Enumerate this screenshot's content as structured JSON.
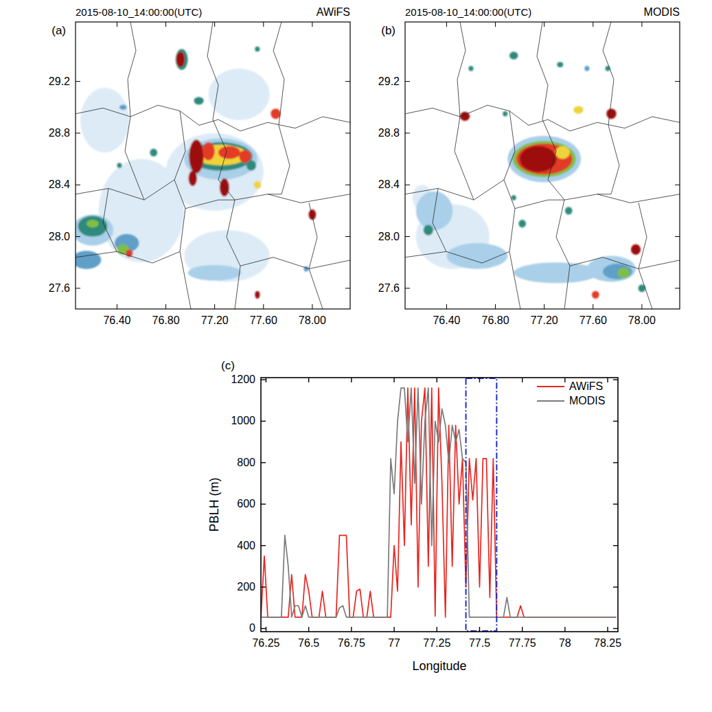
{
  "chart_data": [
    {
      "type": "map",
      "panel": "(a)",
      "title": "2015-08-10_14:00:00(UTC)",
      "subtitle": "AWiFS",
      "xlim": [
        76.06,
        78.31
      ],
      "ylim": [
        27.44,
        29.66
      ],
      "xticks": [
        {
          "value": 76.4,
          "label": "76.40"
        },
        {
          "value": 76.8,
          "label": "76.80"
        },
        {
          "value": 77.2,
          "label": "77.20"
        },
        {
          "value": 77.6,
          "label": "77.60"
        },
        {
          "value": 78.0,
          "label": "78.00"
        }
      ],
      "yticks": [
        {
          "value": 27.6,
          "label": "27.6"
        },
        {
          "value": 28.0,
          "label": "28.0"
        },
        {
          "value": 28.4,
          "label": "28.4"
        },
        {
          "value": 28.8,
          "label": "28.8"
        },
        {
          "value": 29.2,
          "label": "29.2"
        }
      ],
      "colors": [
        "#dcebf6",
        "#a9cfe9",
        "#5f9fc8",
        "#2f8a7c",
        "#7fbf45",
        "#f0d23a",
        "#e23b26",
        "#9e0f10"
      ],
      "blobs": [
        {
          "x": 77.2,
          "y": 28.5,
          "rx": 0.4,
          "ry": 0.3,
          "level": 0
        },
        {
          "x": 76.6,
          "y": 28.2,
          "rx": 0.35,
          "ry": 0.4,
          "level": 0
        },
        {
          "x": 77.3,
          "y": 27.85,
          "rx": 0.35,
          "ry": 0.2,
          "level": 0
        },
        {
          "x": 76.3,
          "y": 28.9,
          "rx": 0.2,
          "ry": 0.25,
          "level": 0
        },
        {
          "x": 77.4,
          "y": 29.1,
          "rx": 0.25,
          "ry": 0.2,
          "level": 0
        },
        {
          "x": 76.2,
          "y": 28.05,
          "rx": 0.17,
          "ry": 0.12,
          "level": 1
        },
        {
          "x": 76.2,
          "y": 28.08,
          "rx": 0.12,
          "ry": 0.08,
          "level": 3
        },
        {
          "x": 76.15,
          "y": 27.82,
          "rx": 0.12,
          "ry": 0.07,
          "level": 2
        },
        {
          "x": 76.48,
          "y": 27.95,
          "rx": 0.1,
          "ry": 0.07,
          "level": 2
        },
        {
          "x": 76.45,
          "y": 27.9,
          "rx": 0.05,
          "ry": 0.04,
          "level": 4
        },
        {
          "x": 76.5,
          "y": 27.87,
          "rx": 0.03,
          "ry": 0.03,
          "level": 6
        },
        {
          "x": 76.2,
          "y": 28.1,
          "rx": 0.05,
          "ry": 0.03,
          "level": 4
        },
        {
          "x": 77.2,
          "y": 27.72,
          "rx": 0.22,
          "ry": 0.06,
          "level": 1
        },
        {
          "x": 77.25,
          "y": 28.6,
          "rx": 0.3,
          "ry": 0.16,
          "level": 1
        },
        {
          "x": 77.25,
          "y": 28.62,
          "rx": 0.26,
          "ry": 0.11,
          "level": 3
        },
        {
          "x": 77.25,
          "y": 28.63,
          "rx": 0.22,
          "ry": 0.08,
          "level": 5
        },
        {
          "x": 77.05,
          "y": 28.62,
          "rx": 0.06,
          "ry": 0.13,
          "level": 7
        },
        {
          "x": 77.15,
          "y": 28.66,
          "rx": 0.05,
          "ry": 0.07,
          "level": 6
        },
        {
          "x": 77.32,
          "y": 28.65,
          "rx": 0.09,
          "ry": 0.05,
          "level": 6
        },
        {
          "x": 77.45,
          "y": 28.62,
          "rx": 0.05,
          "ry": 0.05,
          "level": 6
        },
        {
          "x": 77.02,
          "y": 28.45,
          "rx": 0.035,
          "ry": 0.06,
          "level": 7
        },
        {
          "x": 77.28,
          "y": 28.38,
          "rx": 0.04,
          "ry": 0.07,
          "level": 7
        },
        {
          "x": 77.5,
          "y": 28.55,
          "rx": 0.04,
          "ry": 0.04,
          "level": 3
        },
        {
          "x": 76.93,
          "y": 29.37,
          "rx": 0.05,
          "ry": 0.08,
          "level": 3
        },
        {
          "x": 76.92,
          "y": 29.37,
          "rx": 0.035,
          "ry": 0.06,
          "level": 7
        },
        {
          "x": 77.07,
          "y": 29.05,
          "rx": 0.04,
          "ry": 0.03,
          "level": 3
        },
        {
          "x": 77.7,
          "y": 28.95,
          "rx": 0.04,
          "ry": 0.04,
          "level": 6
        },
        {
          "x": 77.55,
          "y": 29.45,
          "rx": 0.02,
          "ry": 0.02,
          "level": 3
        },
        {
          "x": 76.7,
          "y": 28.65,
          "rx": 0.03,
          "ry": 0.03,
          "level": 3
        },
        {
          "x": 77.55,
          "y": 28.4,
          "rx": 0.03,
          "ry": 0.03,
          "level": 5
        },
        {
          "x": 78.0,
          "y": 28.17,
          "rx": 0.03,
          "ry": 0.04,
          "level": 7
        },
        {
          "x": 76.45,
          "y": 29.0,
          "rx": 0.03,
          "ry": 0.02,
          "level": 2
        },
        {
          "x": 77.55,
          "y": 27.55,
          "rx": 0.02,
          "ry": 0.03,
          "level": 7
        },
        {
          "x": 76.42,
          "y": 28.55,
          "rx": 0.02,
          "ry": 0.02,
          "level": 3
        },
        {
          "x": 77.95,
          "y": 27.75,
          "rx": 0.02,
          "ry": 0.02,
          "level": 2
        }
      ]
    },
    {
      "type": "map",
      "panel": "(b)",
      "title": "2015-08-10_14:00:00(UTC)",
      "subtitle": "MODIS",
      "xlim": [
        76.06,
        78.31
      ],
      "ylim": [
        27.44,
        29.66
      ],
      "xticks": [
        {
          "value": 76.4,
          "label": "76.40"
        },
        {
          "value": 76.8,
          "label": "76.80"
        },
        {
          "value": 77.2,
          "label": "77.20"
        },
        {
          "value": 77.6,
          "label": "77.60"
        },
        {
          "value": 78.0,
          "label": "78.00"
        }
      ],
      "yticks": [
        {
          "value": 27.6,
          "label": "27.6"
        },
        {
          "value": 28.0,
          "label": "28.0"
        },
        {
          "value": 28.4,
          "label": "28.4"
        },
        {
          "value": 28.8,
          "label": "28.8"
        },
        {
          "value": 29.2,
          "label": "29.2"
        }
      ],
      "colors": [
        "#dcebf6",
        "#a9cfe9",
        "#5f9fc8",
        "#2f8a7c",
        "#7fbf45",
        "#f0d23a",
        "#e23b26",
        "#9e0f10"
      ],
      "blobs": [
        {
          "x": 76.45,
          "y": 28.0,
          "rx": 0.3,
          "ry": 0.25,
          "level": 0
        },
        {
          "x": 76.2,
          "y": 28.3,
          "rx": 0.08,
          "ry": 0.1,
          "level": 0
        },
        {
          "x": 76.3,
          "y": 28.2,
          "rx": 0.15,
          "ry": 0.15,
          "level": 1
        },
        {
          "x": 76.65,
          "y": 27.85,
          "rx": 0.25,
          "ry": 0.1,
          "level": 1
        },
        {
          "x": 77.3,
          "y": 27.72,
          "rx": 0.35,
          "ry": 0.08,
          "level": 1
        },
        {
          "x": 77.75,
          "y": 27.75,
          "rx": 0.2,
          "ry": 0.1,
          "level": 1
        },
        {
          "x": 77.8,
          "y": 27.73,
          "rx": 0.12,
          "ry": 0.06,
          "level": 2
        },
        {
          "x": 77.85,
          "y": 27.72,
          "rx": 0.05,
          "ry": 0.04,
          "level": 4
        },
        {
          "x": 76.25,
          "y": 28.05,
          "rx": 0.04,
          "ry": 0.04,
          "level": 3
        },
        {
          "x": 77.2,
          "y": 28.6,
          "rx": 0.3,
          "ry": 0.18,
          "level": 1
        },
        {
          "x": 77.2,
          "y": 28.6,
          "rx": 0.26,
          "ry": 0.14,
          "level": 4
        },
        {
          "x": 77.2,
          "y": 28.6,
          "rx": 0.23,
          "ry": 0.12,
          "level": 6
        },
        {
          "x": 77.15,
          "y": 28.6,
          "rx": 0.15,
          "ry": 0.1,
          "level": 7
        },
        {
          "x": 77.35,
          "y": 28.65,
          "rx": 0.06,
          "ry": 0.05,
          "level": 5
        },
        {
          "x": 76.95,
          "y": 29.4,
          "rx": 0.035,
          "ry": 0.03,
          "level": 3
        },
        {
          "x": 77.33,
          "y": 29.33,
          "rx": 0.025,
          "ry": 0.02,
          "level": 3
        },
        {
          "x": 77.48,
          "y": 28.98,
          "rx": 0.04,
          "ry": 0.03,
          "level": 5
        },
        {
          "x": 76.55,
          "y": 28.93,
          "rx": 0.04,
          "ry": 0.035,
          "level": 7
        },
        {
          "x": 76.88,
          "y": 28.95,
          "rx": 0.02,
          "ry": 0.02,
          "level": 3
        },
        {
          "x": 77.72,
          "y": 29.3,
          "rx": 0.02,
          "ry": 0.02,
          "level": 3
        },
        {
          "x": 77.75,
          "y": 28.95,
          "rx": 0.04,
          "ry": 0.04,
          "level": 7
        },
        {
          "x": 77.4,
          "y": 28.2,
          "rx": 0.03,
          "ry": 0.03,
          "level": 3
        },
        {
          "x": 76.95,
          "y": 28.3,
          "rx": 0.02,
          "ry": 0.02,
          "level": 3
        },
        {
          "x": 77.02,
          "y": 28.1,
          "rx": 0.03,
          "ry": 0.03,
          "level": 3
        },
        {
          "x": 77.95,
          "y": 27.9,
          "rx": 0.04,
          "ry": 0.04,
          "level": 7
        },
        {
          "x": 77.62,
          "y": 27.55,
          "rx": 0.03,
          "ry": 0.03,
          "level": 6
        },
        {
          "x": 78.0,
          "y": 27.6,
          "rx": 0.03,
          "ry": 0.03,
          "level": 3
        },
        {
          "x": 76.6,
          "y": 29.3,
          "rx": 0.02,
          "ry": 0.02,
          "level": 3
        },
        {
          "x": 77.55,
          "y": 29.3,
          "rx": 0.02,
          "ry": 0.02,
          "level": 2
        }
      ]
    },
    {
      "type": "line",
      "panel": "(c)",
      "xlabel": "Longitude",
      "ylabel": "PBLH (m)",
      "xlim": [
        76.22,
        78.31
      ],
      "ylim": [
        -15,
        1210
      ],
      "xticks": [
        76.25,
        76.5,
        76.75,
        77,
        77.25,
        77.5,
        77.75,
        78,
        78.25
      ],
      "yticks": [
        0,
        200,
        400,
        600,
        800,
        1000,
        1200
      ],
      "grid": false,
      "legend": "upper right",
      "highlight_x": [
        77.42,
        77.6
      ],
      "x": [
        76.22,
        76.24,
        76.26,
        76.28,
        76.3,
        76.32,
        76.34,
        76.36,
        76.38,
        76.4,
        76.42,
        76.44,
        76.46,
        76.48,
        76.5,
        76.52,
        76.54,
        76.56,
        76.58,
        76.6,
        76.62,
        76.64,
        76.66,
        76.68,
        76.7,
        76.72,
        76.74,
        76.76,
        76.78,
        76.8,
        76.82,
        76.84,
        76.86,
        76.88,
        76.9,
        76.92,
        76.94,
        76.96,
        76.98,
        77.0,
        77.02,
        77.04,
        77.06,
        77.08,
        77.1,
        77.12,
        77.14,
        77.16,
        77.18,
        77.2,
        77.22,
        77.24,
        77.26,
        77.28,
        77.3,
        77.32,
        77.34,
        77.36,
        77.38,
        77.4,
        77.42,
        77.44,
        77.46,
        77.48,
        77.5,
        77.52,
        77.54,
        77.56,
        77.58,
        77.6,
        77.62,
        77.64,
        77.66,
        77.68,
        77.7,
        77.72,
        77.74,
        77.76,
        77.78,
        77.9,
        78.0,
        78.1,
        78.2,
        78.3
      ],
      "series": [
        {
          "name": "AWiFS",
          "color": "#e8251f",
          "values": [
            55,
            350,
            55,
            55,
            55,
            55,
            55,
            55,
            55,
            260,
            55,
            55,
            55,
            260,
            180,
            55,
            55,
            55,
            180,
            55,
            55,
            55,
            55,
            450,
            450,
            450,
            55,
            55,
            180,
            190,
            55,
            55,
            180,
            55,
            55,
            55,
            55,
            55,
            55,
            400,
            180,
            900,
            400,
            1160,
            500,
            1160,
            200,
            1000,
            1160,
            300,
            1160,
            60,
            1160,
            700,
            55,
            980,
            300,
            980,
            600,
            820,
            200,
            820,
            620,
            820,
            200,
            820,
            820,
            150,
            820,
            55,
            55,
            55,
            55,
            55,
            55,
            55,
            110,
            55,
            55,
            55,
            55,
            55,
            55,
            55
          ]
        },
        {
          "name": "MODIS",
          "color": "#7a7a7a",
          "values": [
            55,
            55,
            55,
            55,
            55,
            55,
            55,
            450,
            300,
            55,
            110,
            110,
            55,
            110,
            55,
            55,
            55,
            55,
            55,
            55,
            55,
            55,
            55,
            100,
            110,
            55,
            55,
            55,
            55,
            55,
            55,
            55,
            55,
            55,
            55,
            55,
            55,
            55,
            820,
            650,
            1000,
            1160,
            1160,
            900,
            1160,
            700,
            1160,
            600,
            1000,
            1160,
            400,
            1000,
            900,
            1060,
            980,
            800,
            980,
            900,
            960,
            820,
            800,
            55,
            55,
            55,
            55,
            55,
            55,
            55,
            55,
            55,
            55,
            55,
            150,
            55,
            55,
            55,
            55,
            55,
            55,
            55,
            55,
            55,
            55,
            55
          ]
        }
      ]
    }
  ]
}
